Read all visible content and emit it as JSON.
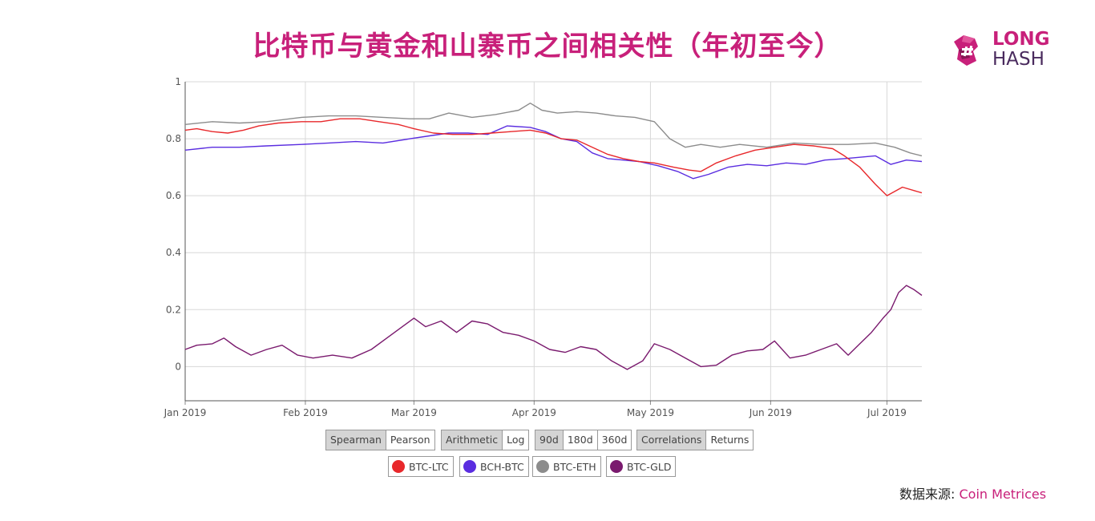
{
  "title": "比特币与黄金和山寨币之间相关性（年初至今）",
  "logo": {
    "line1": "LONG",
    "line2": "HASH"
  },
  "source": {
    "label": "数据来源:",
    "link": "Coin Metrices"
  },
  "controls": {
    "method": [
      {
        "label": "Spearman",
        "active": true
      },
      {
        "label": "Pearson",
        "active": false
      }
    ],
    "scale": [
      {
        "label": "Arithmetic",
        "active": true
      },
      {
        "label": "Log",
        "active": false
      }
    ],
    "window": [
      {
        "label": "90d",
        "active": true
      },
      {
        "label": "180d",
        "active": false
      },
      {
        "label": "360d",
        "active": false
      }
    ],
    "mode": [
      {
        "label": "Correlations",
        "active": true
      },
      {
        "label": "Returns",
        "active": false
      }
    ]
  },
  "colors": {
    "accent": "#c8207a",
    "btc_ltc": "#e8282b",
    "bch_btc": "#5a2de0",
    "btc_eth": "#8c8c8c",
    "btc_gld": "#7a1a6e"
  },
  "chart_data": {
    "type": "line",
    "title": "",
    "xlabel": "",
    "ylabel": "",
    "x_range": [
      "2019-01-01",
      "2019-07-10"
    ],
    "ylim": [
      -0.12,
      1.0
    ],
    "yticks": [
      0,
      0.2,
      0.4,
      0.6,
      0.8,
      1
    ],
    "ytick_labels": [
      "0",
      "0.2",
      "0.4",
      "0.6",
      "0.8",
      "1"
    ],
    "xticks": [
      {
        "date": "2019-01-01",
        "label": "Jan 2019"
      },
      {
        "date": "2019-02-01",
        "label": "Feb 2019"
      },
      {
        "date": "2019-03-01",
        "label": "Mar 2019"
      },
      {
        "date": "2019-04-01",
        "label": "Apr 2019"
      },
      {
        "date": "2019-05-01",
        "label": "May 2019"
      },
      {
        "date": "2019-06-01",
        "label": "Jun 2019"
      },
      {
        "date": "2019-07-01",
        "label": "Jul 2019"
      }
    ],
    "grid": true,
    "legend_position": "bottom",
    "series": [
      {
        "name": "BTC-LTC",
        "color": "#e8282b",
        "points": [
          [
            "2019-01-01",
            0.83
          ],
          [
            "2019-01-04",
            0.835
          ],
          [
            "2019-01-08",
            0.825
          ],
          [
            "2019-01-12",
            0.82
          ],
          [
            "2019-01-16",
            0.83
          ],
          [
            "2019-01-20",
            0.845
          ],
          [
            "2019-01-25",
            0.855
          ],
          [
            "2019-01-31",
            0.86
          ],
          [
            "2019-02-05",
            0.86
          ],
          [
            "2019-02-10",
            0.87
          ],
          [
            "2019-02-15",
            0.87
          ],
          [
            "2019-02-20",
            0.86
          ],
          [
            "2019-02-25",
            0.85
          ],
          [
            "2019-03-01",
            0.835
          ],
          [
            "2019-03-06",
            0.82
          ],
          [
            "2019-03-11",
            0.815
          ],
          [
            "2019-03-16",
            0.815
          ],
          [
            "2019-03-21",
            0.82
          ],
          [
            "2019-03-26",
            0.825
          ],
          [
            "2019-03-31",
            0.83
          ],
          [
            "2019-04-04",
            0.82
          ],
          [
            "2019-04-08",
            0.8
          ],
          [
            "2019-04-12",
            0.795
          ],
          [
            "2019-04-16",
            0.77
          ],
          [
            "2019-04-20",
            0.745
          ],
          [
            "2019-04-24",
            0.73
          ],
          [
            "2019-04-28",
            0.72
          ],
          [
            "2019-05-02",
            0.715
          ],
          [
            "2019-05-07",
            0.7
          ],
          [
            "2019-05-11",
            0.69
          ],
          [
            "2019-05-14",
            0.685
          ],
          [
            "2019-05-18",
            0.715
          ],
          [
            "2019-05-23",
            0.74
          ],
          [
            "2019-05-28",
            0.76
          ],
          [
            "2019-06-02",
            0.77
          ],
          [
            "2019-06-07",
            0.78
          ],
          [
            "2019-06-12",
            0.775
          ],
          [
            "2019-06-17",
            0.765
          ],
          [
            "2019-06-20",
            0.74
          ],
          [
            "2019-06-24",
            0.7
          ],
          [
            "2019-06-28",
            0.64
          ],
          [
            "2019-07-01",
            0.6
          ],
          [
            "2019-07-05",
            0.63
          ],
          [
            "2019-07-10",
            0.61
          ]
        ]
      },
      {
        "name": "BCH-BTC",
        "color": "#5a2de0",
        "points": [
          [
            "2019-01-01",
            0.76
          ],
          [
            "2019-01-08",
            0.77
          ],
          [
            "2019-01-15",
            0.77
          ],
          [
            "2019-01-22",
            0.775
          ],
          [
            "2019-01-31",
            0.78
          ],
          [
            "2019-02-07",
            0.785
          ],
          [
            "2019-02-14",
            0.79
          ],
          [
            "2019-02-21",
            0.785
          ],
          [
            "2019-02-28",
            0.8
          ],
          [
            "2019-03-05",
            0.81
          ],
          [
            "2019-03-10",
            0.82
          ],
          [
            "2019-03-15",
            0.82
          ],
          [
            "2019-03-20",
            0.815
          ],
          [
            "2019-03-25",
            0.845
          ],
          [
            "2019-03-31",
            0.84
          ],
          [
            "2019-04-04",
            0.825
          ],
          [
            "2019-04-08",
            0.8
          ],
          [
            "2019-04-12",
            0.79
          ],
          [
            "2019-04-16",
            0.75
          ],
          [
            "2019-04-20",
            0.73
          ],
          [
            "2019-04-24",
            0.725
          ],
          [
            "2019-04-28",
            0.72
          ],
          [
            "2019-05-03",
            0.705
          ],
          [
            "2019-05-08",
            0.685
          ],
          [
            "2019-05-12",
            0.66
          ],
          [
            "2019-05-16",
            0.675
          ],
          [
            "2019-05-21",
            0.7
          ],
          [
            "2019-05-26",
            0.71
          ],
          [
            "2019-05-31",
            0.705
          ],
          [
            "2019-06-05",
            0.715
          ],
          [
            "2019-06-10",
            0.71
          ],
          [
            "2019-06-15",
            0.725
          ],
          [
            "2019-06-20",
            0.73
          ],
          [
            "2019-06-24",
            0.735
          ],
          [
            "2019-06-28",
            0.74
          ],
          [
            "2019-07-02",
            0.71
          ],
          [
            "2019-07-06",
            0.725
          ],
          [
            "2019-07-10",
            0.72
          ]
        ]
      },
      {
        "name": "BTC-ETH",
        "color": "#8c8c8c",
        "points": [
          [
            "2019-01-01",
            0.85
          ],
          [
            "2019-01-08",
            0.86
          ],
          [
            "2019-01-15",
            0.855
          ],
          [
            "2019-01-22",
            0.86
          ],
          [
            "2019-01-31",
            0.875
          ],
          [
            "2019-02-07",
            0.88
          ],
          [
            "2019-02-14",
            0.88
          ],
          [
            "2019-02-21",
            0.875
          ],
          [
            "2019-02-28",
            0.87
          ],
          [
            "2019-03-05",
            0.87
          ],
          [
            "2019-03-10",
            0.89
          ],
          [
            "2019-03-16",
            0.875
          ],
          [
            "2019-03-22",
            0.885
          ],
          [
            "2019-03-28",
            0.9
          ],
          [
            "2019-03-31",
            0.925
          ],
          [
            "2019-04-03",
            0.9
          ],
          [
            "2019-04-07",
            0.89
          ],
          [
            "2019-04-12",
            0.895
          ],
          [
            "2019-04-17",
            0.89
          ],
          [
            "2019-04-22",
            0.88
          ],
          [
            "2019-04-27",
            0.875
          ],
          [
            "2019-05-02",
            0.86
          ],
          [
            "2019-05-06",
            0.8
          ],
          [
            "2019-05-10",
            0.77
          ],
          [
            "2019-05-14",
            0.78
          ],
          [
            "2019-05-19",
            0.77
          ],
          [
            "2019-05-24",
            0.78
          ],
          [
            "2019-05-31",
            0.77
          ],
          [
            "2019-06-07",
            0.785
          ],
          [
            "2019-06-14",
            0.78
          ],
          [
            "2019-06-21",
            0.78
          ],
          [
            "2019-06-28",
            0.785
          ],
          [
            "2019-07-03",
            0.77
          ],
          [
            "2019-07-07",
            0.75
          ],
          [
            "2019-07-10",
            0.74
          ]
        ]
      },
      {
        "name": "BTC-GLD",
        "color": "#7a1a6e",
        "points": [
          [
            "2019-01-01",
            0.06
          ],
          [
            "2019-01-04",
            0.075
          ],
          [
            "2019-01-08",
            0.08
          ],
          [
            "2019-01-11",
            0.1
          ],
          [
            "2019-01-14",
            0.07
          ],
          [
            "2019-01-18",
            0.04
          ],
          [
            "2019-01-22",
            0.06
          ],
          [
            "2019-01-26",
            0.075
          ],
          [
            "2019-01-30",
            0.04
          ],
          [
            "2019-02-03",
            0.03
          ],
          [
            "2019-02-08",
            0.04
          ],
          [
            "2019-02-13",
            0.03
          ],
          [
            "2019-02-18",
            0.06
          ],
          [
            "2019-02-22",
            0.1
          ],
          [
            "2019-02-26",
            0.14
          ],
          [
            "2019-03-01",
            0.17
          ],
          [
            "2019-03-04",
            0.14
          ],
          [
            "2019-03-08",
            0.16
          ],
          [
            "2019-03-12",
            0.12
          ],
          [
            "2019-03-16",
            0.16
          ],
          [
            "2019-03-20",
            0.15
          ],
          [
            "2019-03-24",
            0.12
          ],
          [
            "2019-03-28",
            0.11
          ],
          [
            "2019-04-01",
            0.09
          ],
          [
            "2019-04-05",
            0.06
          ],
          [
            "2019-04-09",
            0.05
          ],
          [
            "2019-04-13",
            0.07
          ],
          [
            "2019-04-17",
            0.06
          ],
          [
            "2019-04-21",
            0.02
          ],
          [
            "2019-04-25",
            -0.01
          ],
          [
            "2019-04-29",
            0.02
          ],
          [
            "2019-05-02",
            0.08
          ],
          [
            "2019-05-06",
            0.06
          ],
          [
            "2019-05-10",
            0.03
          ],
          [
            "2019-05-14",
            0.0
          ],
          [
            "2019-05-18",
            0.005
          ],
          [
            "2019-05-22",
            0.04
          ],
          [
            "2019-05-26",
            0.055
          ],
          [
            "2019-05-30",
            0.06
          ],
          [
            "2019-06-02",
            0.09
          ],
          [
            "2019-06-06",
            0.03
          ],
          [
            "2019-06-10",
            0.04
          ],
          [
            "2019-06-14",
            0.06
          ],
          [
            "2019-06-18",
            0.08
          ],
          [
            "2019-06-21",
            0.04
          ],
          [
            "2019-06-24",
            0.08
          ],
          [
            "2019-06-27",
            0.12
          ],
          [
            "2019-06-30",
            0.17
          ],
          [
            "2019-07-02",
            0.2
          ],
          [
            "2019-07-04",
            0.26
          ],
          [
            "2019-07-06",
            0.285
          ],
          [
            "2019-07-08",
            0.27
          ],
          [
            "2019-07-10",
            0.25
          ]
        ]
      }
    ]
  }
}
